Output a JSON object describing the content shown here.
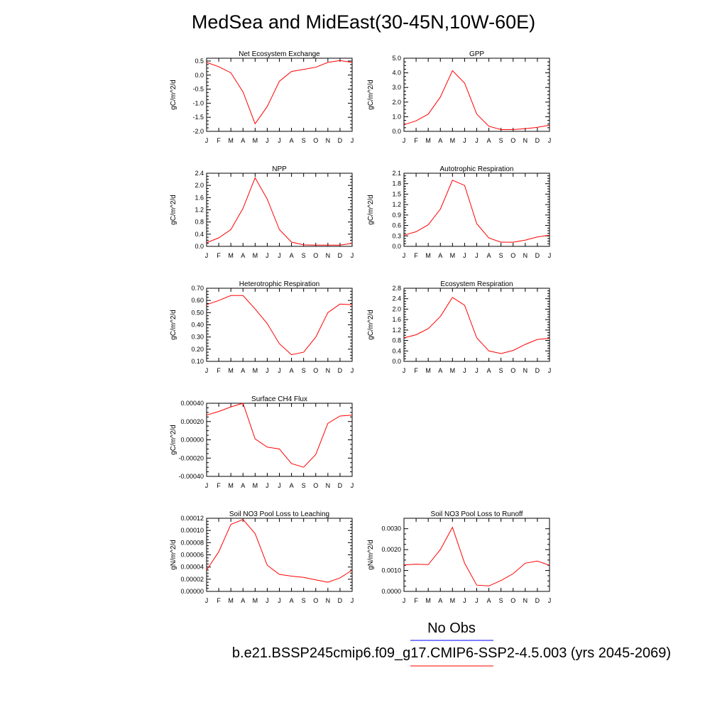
{
  "title": "MedSea and MidEast(30-45N,10W-60E)",
  "colors": {
    "model_line": "#ff0000",
    "obs_line": "#0000ff",
    "axis": "#000000"
  },
  "legend": {
    "obs_label": "No Obs",
    "model_label": "b.e21.BSSP245cmip6.f09_g17.CMIP6-SSP2-4.5.003 (yrs 2045-2069)"
  },
  "chart_data": [
    {
      "type": "line",
      "title": "Net Ecosystem Exchange",
      "ylabel": "gC/m^2/d",
      "x": [
        "J",
        "F",
        "M",
        "A",
        "M",
        "J",
        "J",
        "A",
        "S",
        "O",
        "N",
        "D",
        "J"
      ],
      "ylim": [
        -2.0,
        0.6
      ],
      "yticks": [
        "-2.0",
        "-1.5",
        "-1.0",
        "-0.5",
        "0.0",
        "0.5"
      ],
      "ytick_values": [
        -2.0,
        -1.5,
        -1.0,
        -0.5,
        0.0,
        0.5
      ],
      "series": [
        {
          "values": [
            0.45,
            0.3,
            0.08,
            -0.6,
            -1.73,
            -1.12,
            -0.22,
            0.13,
            0.2,
            0.28,
            0.45,
            0.52,
            0.45
          ]
        }
      ]
    },
    {
      "type": "line",
      "title": "GPP",
      "ylabel": "gC/m^2/d",
      "x": [
        "J",
        "F",
        "M",
        "A",
        "M",
        "J",
        "J",
        "A",
        "S",
        "O",
        "N",
        "D",
        "J"
      ],
      "ylim": [
        0.0,
        5.0
      ],
      "yticks": [
        "0.0",
        "1.0",
        "2.0",
        "3.0",
        "4.0",
        "5.0"
      ],
      "ytick_values": [
        0,
        1,
        2,
        3,
        4,
        5
      ],
      "series": [
        {
          "values": [
            0.45,
            0.72,
            1.18,
            2.35,
            4.15,
            3.3,
            1.18,
            0.35,
            0.12,
            0.12,
            0.18,
            0.27,
            0.42
          ]
        }
      ]
    },
    {
      "type": "line",
      "title": "NPP",
      "ylabel": "gC/m^2/d",
      "x": [
        "J",
        "F",
        "M",
        "A",
        "M",
        "J",
        "J",
        "A",
        "S",
        "O",
        "N",
        "D",
        "J"
      ],
      "ylim": [
        0.0,
        2.4
      ],
      "yticks": [
        "0.0",
        "0.4",
        "0.8",
        "1.2",
        "1.6",
        "2.0",
        "2.4"
      ],
      "ytick_values": [
        0,
        0.4,
        0.8,
        1.2,
        1.6,
        2.0,
        2.4
      ],
      "series": [
        {
          "values": [
            0.12,
            0.28,
            0.55,
            1.25,
            2.25,
            1.55,
            0.55,
            0.14,
            0.05,
            0.04,
            0.04,
            0.04,
            0.1
          ]
        }
      ]
    },
    {
      "type": "line",
      "title": "Autotrophic Respiration",
      "ylabel": "gC/m^2/d",
      "x": [
        "J",
        "F",
        "M",
        "A",
        "M",
        "J",
        "J",
        "A",
        "S",
        "O",
        "N",
        "D",
        "J"
      ],
      "ylim": [
        0.0,
        2.1
      ],
      "yticks": [
        "0.0",
        "0.3",
        "0.6",
        "0.9",
        "1.2",
        "1.5",
        "1.8",
        "2.1"
      ],
      "ytick_values": [
        0,
        0.3,
        0.6,
        0.9,
        1.2,
        1.5,
        1.8,
        2.1
      ],
      "series": [
        {
          "values": [
            0.32,
            0.42,
            0.62,
            1.07,
            1.9,
            1.75,
            0.65,
            0.24,
            0.12,
            0.12,
            0.18,
            0.27,
            0.32
          ]
        }
      ]
    },
    {
      "type": "line",
      "title": "Heterotrophic Respiration",
      "ylabel": "gC/m^2/d",
      "x": [
        "J",
        "F",
        "M",
        "A",
        "M",
        "J",
        "J",
        "A",
        "S",
        "O",
        "N",
        "D",
        "J"
      ],
      "ylim": [
        0.1,
        0.7
      ],
      "yticks": [
        "0.10",
        "0.20",
        "0.30",
        "0.40",
        "0.50",
        "0.60",
        "0.70"
      ],
      "ytick_values": [
        0.1,
        0.2,
        0.3,
        0.4,
        0.5,
        0.6,
        0.7
      ],
      "series": [
        {
          "values": [
            0.565,
            0.6,
            0.64,
            0.64,
            0.53,
            0.41,
            0.245,
            0.155,
            0.175,
            0.3,
            0.5,
            0.57,
            0.565
          ]
        }
      ]
    },
    {
      "type": "line",
      "title": "Ecosystem Respiration",
      "ylabel": "gC/m^2/d",
      "x": [
        "J",
        "F",
        "M",
        "A",
        "M",
        "J",
        "J",
        "A",
        "S",
        "O",
        "N",
        "D",
        "J"
      ],
      "ylim": [
        0.0,
        2.8
      ],
      "yticks": [
        "0.0",
        "0.4",
        "0.8",
        "1.2",
        "1.6",
        "2.0",
        "2.4",
        "2.8"
      ],
      "ytick_values": [
        0,
        0.4,
        0.8,
        1.2,
        1.6,
        2.0,
        2.4,
        2.8
      ],
      "series": [
        {
          "values": [
            0.9,
            1.02,
            1.25,
            1.72,
            2.45,
            2.15,
            0.9,
            0.4,
            0.3,
            0.42,
            0.65,
            0.84,
            0.88
          ]
        }
      ]
    },
    {
      "type": "line",
      "title": "Surface CH4 Flux",
      "ylabel": "gC/m^2/d",
      "x": [
        "J",
        "F",
        "M",
        "A",
        "M",
        "J",
        "J",
        "A",
        "S",
        "O",
        "N",
        "D",
        "J"
      ],
      "ylim": [
        -0.0004,
        0.0004
      ],
      "yticks": [
        "-0.00040",
        "-0.00020",
        "0.00000",
        "0.00020",
        "0.00040"
      ],
      "ytick_values": [
        -0.0004,
        -0.0002,
        0,
        0.0002,
        0.0004
      ],
      "series": [
        {
          "values": [
            0.00027,
            0.00031,
            0.00036,
            0.0004,
            1e-05,
            -8e-05,
            -0.0001,
            -0.00026,
            -0.0003,
            -0.00016,
            0.00018,
            0.00026,
            0.00027
          ]
        }
      ]
    },
    {
      "type": "line",
      "title": "Soil NO3 Pool Loss to Leaching",
      "ylabel": "gN/m^2/d",
      "x": [
        "J",
        "F",
        "M",
        "A",
        "M",
        "J",
        "J",
        "A",
        "S",
        "O",
        "N",
        "D",
        "J"
      ],
      "ylim": [
        0.0,
        0.00012
      ],
      "yticks": [
        "0.00000",
        "0.00002",
        "0.00004",
        "0.00006",
        "0.00008",
        "0.00010",
        "0.00012"
      ],
      "ytick_values": [
        0,
        2e-05,
        4e-05,
        6e-05,
        8e-05,
        0.0001,
        0.00012
      ],
      "series": [
        {
          "values": [
            3.5e-05,
            6.5e-05,
            0.00011,
            0.000118,
            9.5e-05,
            4.3e-05,
            2.8e-05,
            2.5e-05,
            2.3e-05,
            1.9e-05,
            1.5e-05,
            2.2e-05,
            3.5e-05
          ]
        }
      ]
    },
    {
      "type": "line",
      "title": "Soil NO3 Pool Loss to Runoff",
      "ylabel": "gN/m^2/d",
      "x": [
        "J",
        "F",
        "M",
        "A",
        "M",
        "J",
        "J",
        "A",
        "S",
        "O",
        "N",
        "D",
        "J"
      ],
      "ylim": [
        0.0,
        0.0035
      ],
      "yticks": [
        "0.0000",
        "0.0010",
        "0.0020",
        "0.0030"
      ],
      "ytick_values": [
        0,
        0.001,
        0.002,
        0.003
      ],
      "series": [
        {
          "values": [
            0.00127,
            0.0013,
            0.00128,
            0.002,
            0.00307,
            0.00135,
            0.0003,
            0.00026,
            0.00052,
            0.00085,
            0.00135,
            0.00145,
            0.00125
          ]
        }
      ]
    }
  ]
}
